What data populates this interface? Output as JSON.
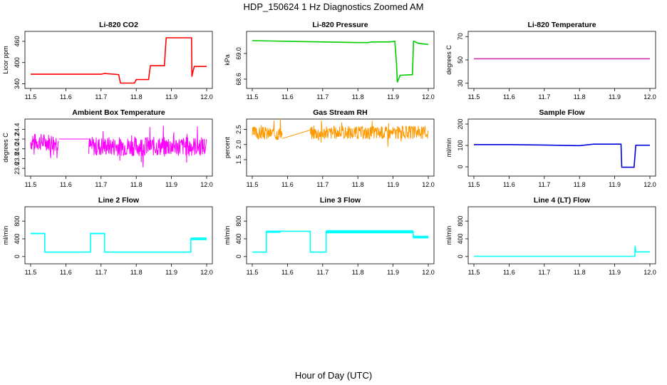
{
  "figure": {
    "title": "HDP_150624  1 Hz Diagnostics Zoomed AM",
    "xlabel": "Hour of Day (UTC)"
  },
  "chart_data": [
    {
      "type": "line",
      "title": "Li-820 CO2",
      "ylabel": "Licor ppm",
      "color": "#ff0000",
      "xlim": [
        11.5,
        12.0
      ],
      "ylim": [
        335,
        480
      ],
      "xticks": [
        "11.5",
        "11.6",
        "11.7",
        "11.8",
        "11.9",
        "12.0"
      ],
      "yticks": [
        "340",
        "400",
        "460"
      ],
      "series": [
        {
          "name": "CO2",
          "style": "step",
          "x": [
            11.5,
            11.7,
            11.71,
            11.75,
            11.755,
            11.795,
            11.8,
            11.835,
            11.84,
            11.88,
            11.885,
            11.957,
            11.958,
            11.96,
            11.965,
            12.0
          ],
          "y": [
            367,
            367,
            369,
            366,
            342,
            342,
            352,
            352,
            391,
            391,
            470,
            470,
            360,
            370,
            389,
            389
          ]
        }
      ]
    },
    {
      "type": "line",
      "title": "Li-820 Pressure",
      "ylabel": "kPa",
      "color": "#00cc00",
      "xlim": [
        11.5,
        12.0
      ],
      "ylim": [
        68.5,
        69.3
      ],
      "xticks": [
        "11.5",
        "11.6",
        "11.7",
        "11.8",
        "11.9",
        "12.0"
      ],
      "yticks": [
        "68.6",
        "69.0"
      ],
      "series": [
        {
          "name": "Pressure",
          "style": "line",
          "x": [
            11.5,
            11.6,
            11.7,
            11.8,
            11.83,
            11.84,
            11.89,
            11.905,
            11.91,
            11.912,
            11.92,
            11.955,
            11.958,
            11.96,
            11.97,
            12.0
          ],
          "y": [
            69.2,
            69.19,
            69.18,
            69.17,
            69.17,
            69.18,
            69.18,
            69.19,
            68.83,
            68.55,
            68.66,
            68.67,
            69.19,
            69.19,
            69.16,
            69.14
          ]
        }
      ]
    },
    {
      "type": "line",
      "title": "Li-820 Temperature",
      "ylabel": "degrees C",
      "color": "#cc33aa",
      "xlim": [
        11.5,
        12.0
      ],
      "ylim": [
        28,
        72
      ],
      "xticks": [
        "11.5",
        "11.6",
        "11.7",
        "11.8",
        "11.9",
        "12.0"
      ],
      "yticks": [
        "30",
        "50",
        "70"
      ],
      "series": [
        {
          "name": "Temperature",
          "style": "line",
          "x": [
            11.5,
            12.0
          ],
          "y": [
            51,
            51
          ]
        }
      ]
    },
    {
      "type": "line",
      "title": "Ambient Box Temperature",
      "ylabel": "degrees C",
      "color": "#ff00ff",
      "xlim": [
        11.5,
        12.0
      ],
      "ylim": [
        23.5,
        24.55
      ],
      "xticks": [
        "11.5",
        "11.6",
        "11.7",
        "11.8",
        "11.9",
        "12.0"
      ],
      "yticks": [
        "23.6",
        "23.8",
        "24.0",
        "24.2",
        "24.4"
      ],
      "series": [
        {
          "name": "Box temp",
          "style": "noisy",
          "seed": 7,
          "x": [
            11.5,
            11.58,
            11.58,
            11.665,
            11.665,
            12.0
          ],
          "y": [
            24.14,
            24.14,
            24.2,
            24.2,
            24.05,
            24.05
          ],
          "noise": [
            0.18,
            0,
            0.2
          ],
          "dense": [
            true,
            false,
            true
          ]
        }
      ]
    },
    {
      "type": "line",
      "title": "Gas Stream RH",
      "ylabel": "percent",
      "color": "#ff9900",
      "xlim": [
        11.5,
        12.0
      ],
      "ylim": [
        1.05,
        2.75
      ],
      "xticks": [
        "11.5",
        "11.6",
        "11.7",
        "11.8",
        "11.9",
        "12.0"
      ],
      "yticks": [
        "1.5",
        "2.0",
        "2.5"
      ],
      "series": [
        {
          "name": "RH",
          "style": "noisy",
          "seed": 3,
          "x": [
            11.5,
            11.585,
            11.585,
            11.665,
            11.665,
            12.0
          ],
          "y": [
            2.38,
            2.38,
            2.2,
            2.48,
            2.4,
            2.4
          ],
          "noise": [
            0.22,
            0.02,
            0.22
          ],
          "dense": [
            true,
            false,
            true
          ]
        }
      ]
    },
    {
      "type": "line",
      "title": "Sample Flow",
      "ylabel": "ml/min",
      "color": "#0000dd",
      "xlim": [
        11.5,
        12.0
      ],
      "ylim": [
        -30,
        210
      ],
      "xticks": [
        "11.5",
        "11.6",
        "11.7",
        "11.8",
        "11.9",
        "12.0"
      ],
      "yticks": [
        "0",
        "100",
        "200"
      ],
      "series": [
        {
          "name": "Sample flow",
          "style": "line",
          "x": [
            11.5,
            11.6,
            11.7,
            11.8,
            11.84,
            11.918,
            11.92,
            11.955,
            11.96,
            12.0
          ],
          "y": [
            104,
            104,
            102,
            99,
            106,
            106,
            -2,
            -2,
            101,
            101
          ]
        }
      ]
    },
    {
      "type": "line",
      "title": "Line 2 Flow",
      "ylabel": "ml/min",
      "color": "#00ffff",
      "xlim": [
        11.5,
        12.0
      ],
      "ylim": [
        -100,
        1060
      ],
      "xticks": [
        "11.5",
        "11.6",
        "11.7",
        "11.8",
        "11.9",
        "12.0"
      ],
      "yticks": [
        "0",
        "400",
        "800"
      ],
      "series": [
        {
          "name": "Line 2",
          "style": "band",
          "x": [
            11.5,
            11.54,
            11.54,
            11.67,
            11.67,
            11.71,
            11.71,
            11.955,
            11.955,
            12.0
          ],
          "y": [
            520,
            520,
            100,
            100,
            520,
            520,
            100,
            100,
            400,
            400
          ],
          "band": [
            30,
            0,
            30,
            0,
            60
          ]
        }
      ]
    },
    {
      "type": "line",
      "title": "Line 3 Flow",
      "ylabel": "ml/min",
      "color": "#00ffff",
      "xlim": [
        11.5,
        12.0
      ],
      "ylim": [
        -100,
        1060
      ],
      "xticks": [
        "11.5",
        "11.6",
        "11.7",
        "11.8",
        "11.9",
        "12.0"
      ],
      "yticks": [
        "0",
        "400",
        "800"
      ],
      "series": [
        {
          "name": "Line 3",
          "style": "band",
          "x": [
            11.5,
            11.54,
            11.54,
            11.58,
            11.58,
            11.665,
            11.665,
            11.71,
            11.71,
            11.957,
            11.957,
            12.0
          ],
          "y": [
            100,
            100,
            560,
            560,
            570,
            570,
            100,
            100,
            560,
            560,
            440,
            440
          ],
          "band": [
            0,
            50,
            0,
            0,
            70,
            60
          ]
        }
      ]
    },
    {
      "type": "line",
      "title": "Line 4 (LT) Flow",
      "ylabel": "ml/min",
      "color": "#00ffff",
      "xlim": [
        11.5,
        12.0
      ],
      "ylim": [
        -100,
        1060
      ],
      "xticks": [
        "11.5",
        "11.6",
        "11.7",
        "11.8",
        "11.9",
        "12.0"
      ],
      "yticks": [
        "0",
        "400",
        "800"
      ],
      "series": [
        {
          "name": "Line 4",
          "style": "line",
          "x": [
            11.5,
            11.957,
            11.958,
            11.96,
            11.962,
            12.0
          ],
          "y": [
            5,
            5,
            240,
            110,
            105,
            105
          ]
        }
      ]
    }
  ]
}
